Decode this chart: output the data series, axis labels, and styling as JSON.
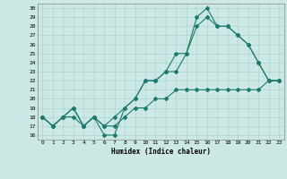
{
  "title": "",
  "xlabel": "Humidex (Indice chaleur)",
  "ylabel": "",
  "bg_color": "#cce8e4",
  "grid_color": "#aad4ce",
  "line_color": "#1a7a6e",
  "xlim": [
    -0.5,
    23.5
  ],
  "ylim": [
    15.5,
    30.5
  ],
  "yticks": [
    16,
    17,
    18,
    19,
    20,
    21,
    22,
    23,
    24,
    25,
    26,
    27,
    28,
    29,
    30
  ],
  "xticks": [
    0,
    1,
    2,
    3,
    4,
    5,
    6,
    7,
    8,
    9,
    10,
    11,
    12,
    13,
    14,
    15,
    16,
    17,
    18,
    19,
    20,
    21,
    22,
    23
  ],
  "series1": [
    18,
    17,
    18,
    19,
    17,
    18,
    16,
    16,
    19,
    20,
    22,
    22,
    23,
    25,
    25,
    29,
    30,
    28,
    28,
    27,
    26,
    24,
    22,
    22
  ],
  "series2": [
    18,
    17,
    18,
    19,
    17,
    18,
    17,
    18,
    19,
    20,
    22,
    22,
    23,
    23,
    25,
    28,
    29,
    28,
    28,
    27,
    26,
    24,
    22,
    22
  ],
  "series3": [
    18,
    17,
    18,
    18,
    17,
    18,
    17,
    17,
    18,
    19,
    19,
    20,
    20,
    21,
    21,
    21,
    21,
    21,
    21,
    21,
    21,
    21,
    22,
    22
  ]
}
